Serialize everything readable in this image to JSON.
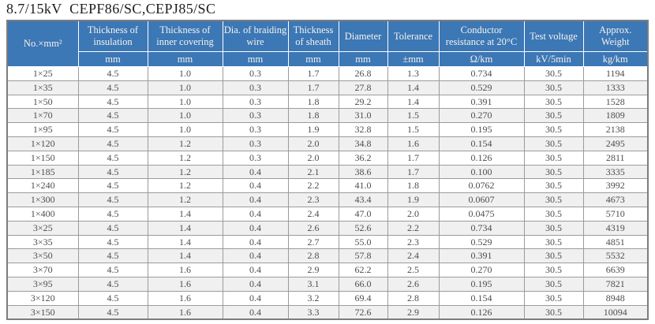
{
  "title": "8.7/15kV  CEPF86/SC,CEPJ85/SC",
  "colors": {
    "header_bg": "#3c77b6",
    "header_text": "#f6f3ea",
    "row_stripe": "#f0f0f0",
    "grid_line": "#9b9b9b",
    "outer_border": "#7d7d7d",
    "body_text": "#4d4d4d"
  },
  "table": {
    "columns": [
      {
        "label": "No.×mm²",
        "unit": ""
      },
      {
        "label": "Thickness of insulation",
        "unit": "mm"
      },
      {
        "label": "Thickness of inner covering",
        "unit": "mm"
      },
      {
        "label": "Dia. of braiding wire",
        "unit": "mm"
      },
      {
        "label": "Thickness of sheath",
        "unit": "mm"
      },
      {
        "label": "Diameter",
        "unit": "mm"
      },
      {
        "label": "Tolerance",
        "unit": "±mm"
      },
      {
        "label": "Conductor resistance at 20°C",
        "unit": "Ω/km"
      },
      {
        "label": "Test voltage",
        "unit": "kV/5min"
      },
      {
        "label": "Approx. Weight",
        "unit": "kg/km"
      }
    ],
    "rows": [
      [
        "1×25",
        "4.5",
        "1.0",
        "0.3",
        "1.7",
        "26.8",
        "1.3",
        "0.734",
        "30.5",
        "1194"
      ],
      [
        "1×35",
        "4.5",
        "1.0",
        "0.3",
        "1.7",
        "27.8",
        "1.4",
        "0.529",
        "30.5",
        "1333"
      ],
      [
        "1×50",
        "4.5",
        "1.0",
        "0.3",
        "1.8",
        "29.2",
        "1.4",
        "0.391",
        "30.5",
        "1528"
      ],
      [
        "1×70",
        "4.5",
        "1.0",
        "0.3",
        "1.8",
        "31.0",
        "1.5",
        "0.270",
        "30.5",
        "1809"
      ],
      [
        "1×95",
        "4.5",
        "1.0",
        "0.3",
        "1.9",
        "32.8",
        "1.5",
        "0.195",
        "30.5",
        "2138"
      ],
      [
        "1×120",
        "4.5",
        "1.2",
        "0.3",
        "2.0",
        "34.8",
        "1.6",
        "0.154",
        "30.5",
        "2495"
      ],
      [
        "1×150",
        "4.5",
        "1.2",
        "0.3",
        "2.0",
        "36.2",
        "1.7",
        "0.126",
        "30.5",
        "2811"
      ],
      [
        "1×185",
        "4.5",
        "1.2",
        "0.4",
        "2.1",
        "38.6",
        "1.7",
        "0.100",
        "30.5",
        "3335"
      ],
      [
        "1×240",
        "4.5",
        "1.2",
        "0.4",
        "2.2",
        "41.0",
        "1.8",
        "0.0762",
        "30.5",
        "3992"
      ],
      [
        "1×300",
        "4.5",
        "1.2",
        "0.4",
        "2.3",
        "43.4",
        "1.9",
        "0.0607",
        "30.5",
        "4673"
      ],
      [
        "1×400",
        "4.5",
        "1.4",
        "0.4",
        "2.4",
        "47.0",
        "2.0",
        "0.0475",
        "30.5",
        "5710"
      ],
      [
        "3×25",
        "4.5",
        "1.4",
        "0.4",
        "2.6",
        "52.6",
        "2.2",
        "0.734",
        "30.5",
        "4319"
      ],
      [
        "3×35",
        "4.5",
        "1.4",
        "0.4",
        "2.7",
        "55.0",
        "2.3",
        "0.529",
        "30.5",
        "4851"
      ],
      [
        "3×50",
        "4.5",
        "1.4",
        "0.4",
        "2.8",
        "57.8",
        "2.4",
        "0.391",
        "30.5",
        "5532"
      ],
      [
        "3×70",
        "4.5",
        "1.6",
        "0.4",
        "2.9",
        "62.2",
        "2.5",
        "0.270",
        "30.5",
        "6639"
      ],
      [
        "3×95",
        "4.5",
        "1.6",
        "0.4",
        "3.1",
        "66.0",
        "2.6",
        "0.195",
        "30.5",
        "7821"
      ],
      [
        "3×120",
        "4.5",
        "1.6",
        "0.4",
        "3.2",
        "69.4",
        "2.8",
        "0.154",
        "30.5",
        "8948"
      ],
      [
        "3×150",
        "4.5",
        "1.6",
        "0.4",
        "3.3",
        "72.6",
        "2.9",
        "0.126",
        "30.5",
        "10094"
      ]
    ]
  }
}
